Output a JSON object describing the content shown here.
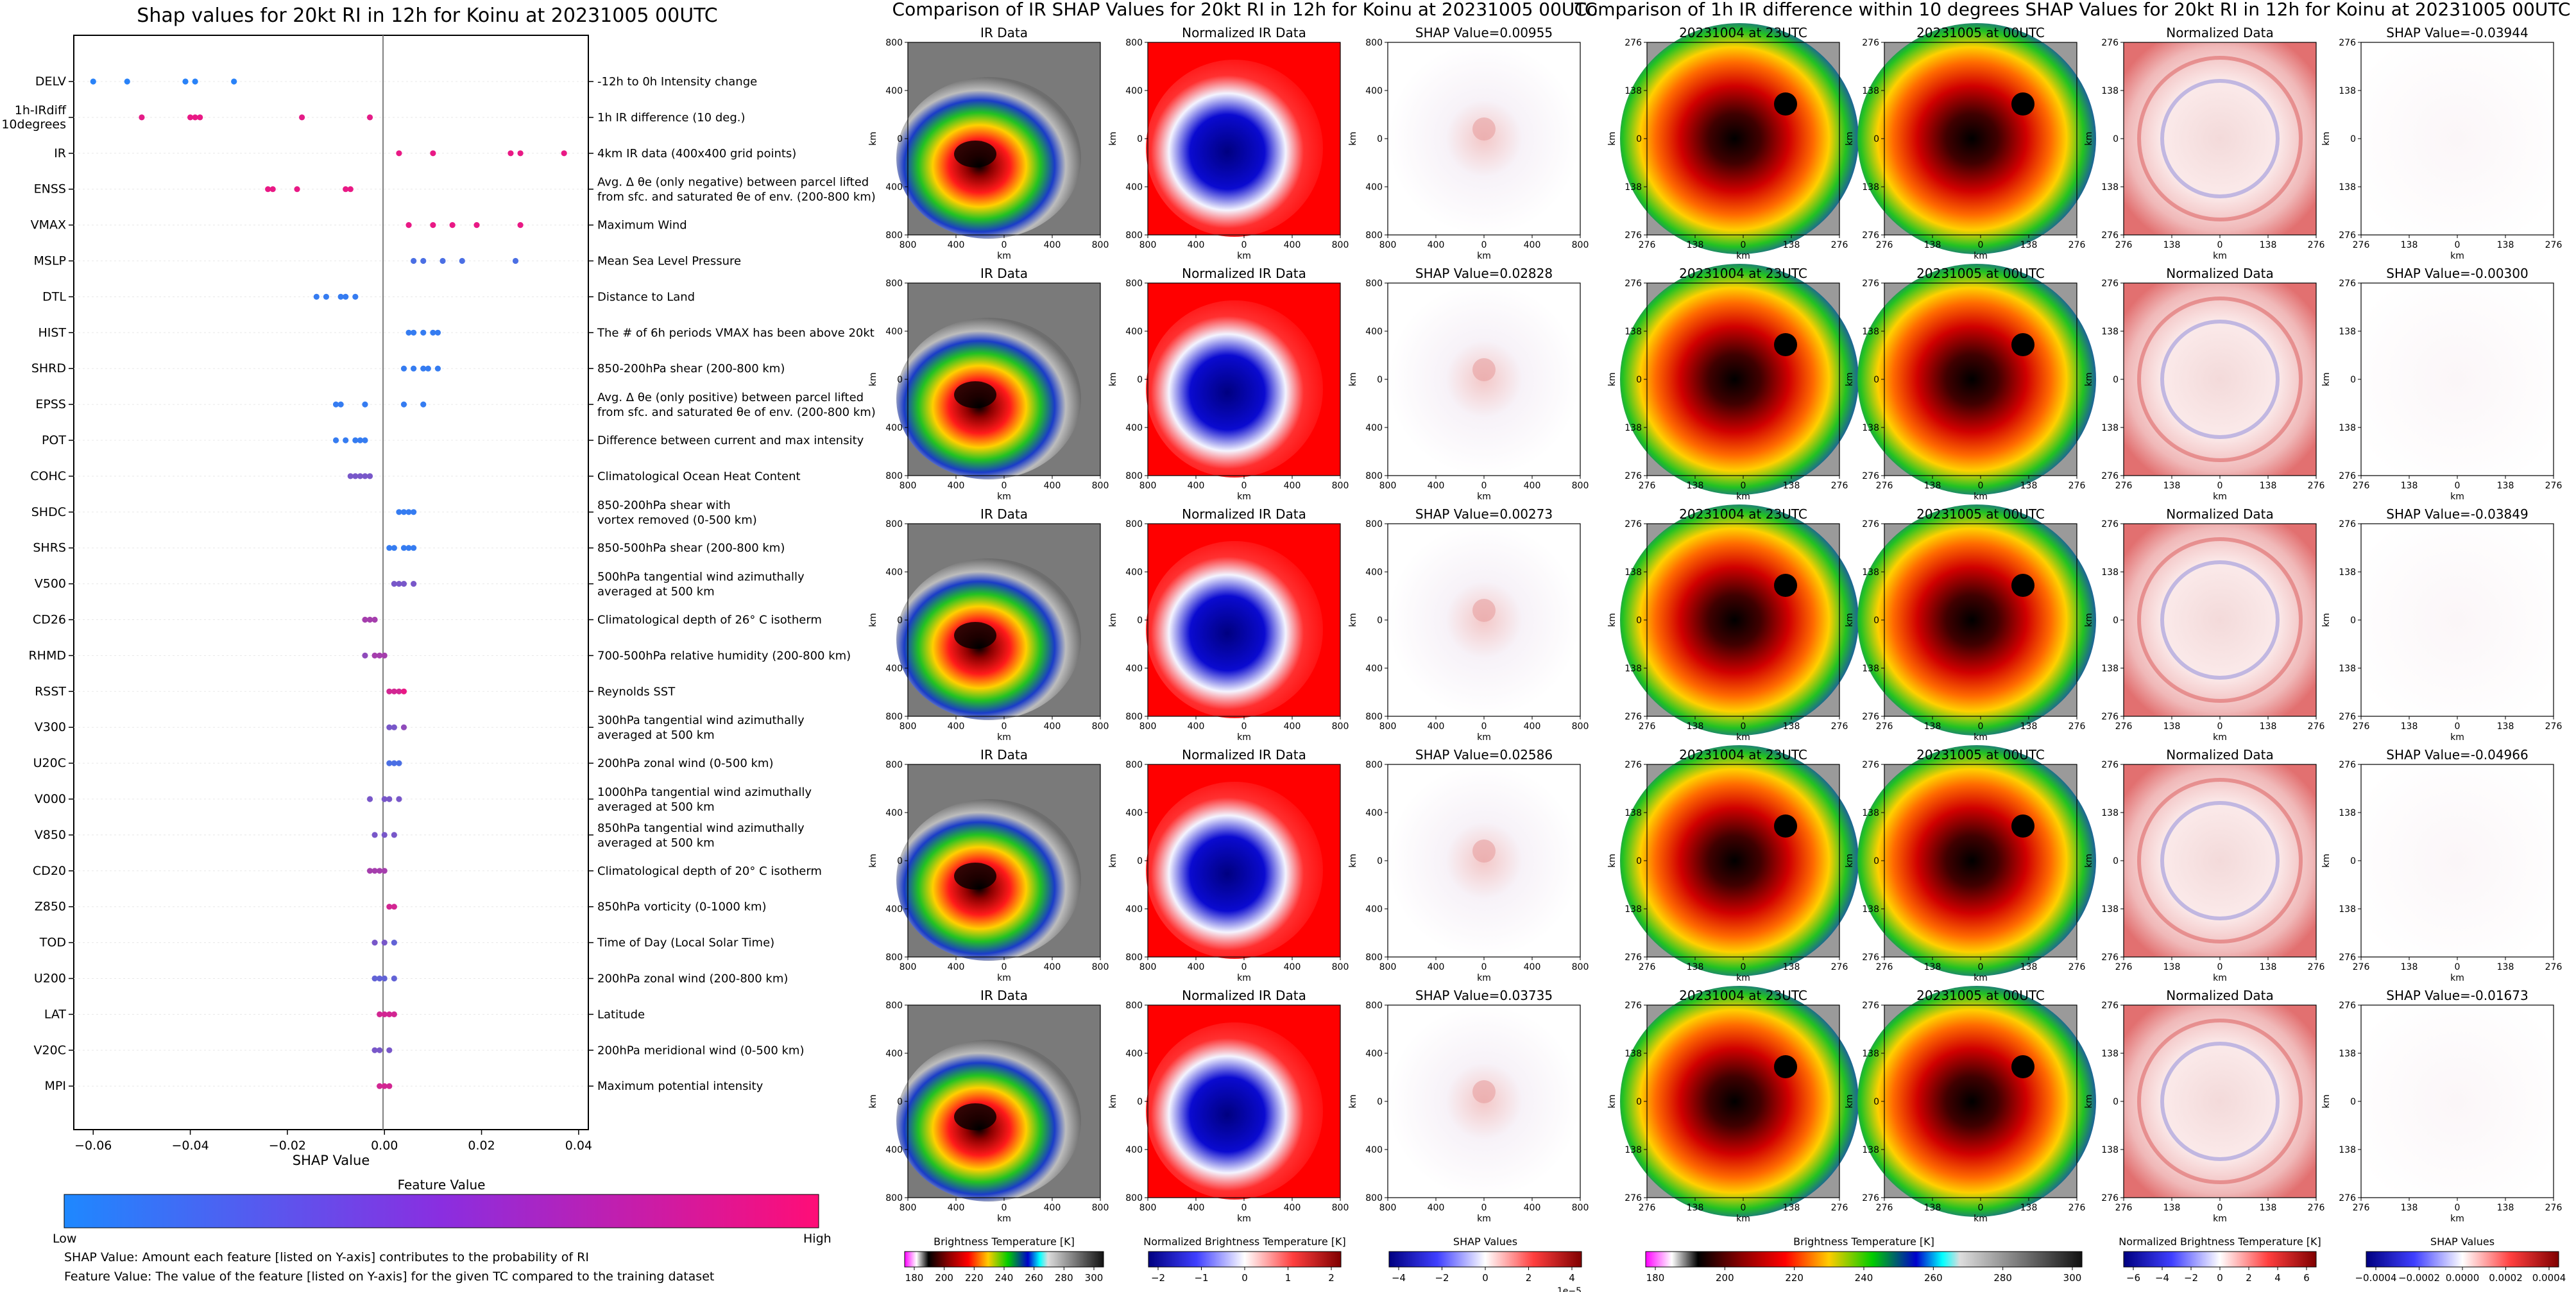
{
  "colors": {
    "low": "#1e88ff",
    "high": "#ff0d77",
    "axis": "#000000",
    "row_line": "#e8e8e8"
  },
  "shap_summary": {
    "title": "Shap values for 20kt RI in 12h for Koinu at 20231005 00UTC",
    "xlabel": "SHAP Value",
    "colorbar_title": "Feature Value",
    "colorbar_low": "Low",
    "colorbar_high": "High",
    "note1": "SHAP Value: Amount each feature [listed on Y-axis] contributes to the probability of RI",
    "note2": "Feature Value: The value of the feature [listed on Y-axis] for the given TC compared to the training dataset"
  },
  "ir_panel": {
    "title": "Comparison of IR SHAP Values for 20kt RI in 12h for Koinu at 20231005 00UTC",
    "columns": [
      "IR Data",
      "Normalized IR Data"
    ],
    "shap_titles": [
      "SHAP Value=0.00955",
      "SHAP Value=0.02828",
      "SHAP Value=0.00273",
      "SHAP Value=0.02586",
      "SHAP Value=0.03735"
    ],
    "y_ticks": [
      "800",
      "400",
      "0",
      "400",
      "800"
    ],
    "x_ticks": [
      "800",
      "400",
      "0",
      "400",
      "800"
    ],
    "axis_label": "km",
    "colorbars": [
      {
        "label": "Brightness Temperature [K]",
        "ticks": [
          "180",
          "200",
          "220",
          "240",
          "260",
          "280",
          "300"
        ]
      },
      {
        "label": "Normalized Brightness Temperature [K]",
        "ticks": [
          "−2",
          "−1",
          "0",
          "1",
          "2"
        ]
      },
      {
        "label": "SHAP Values",
        "ticks": [
          "−4",
          "−2",
          "0",
          "2",
          "4"
        ],
        "offset": "1e−5"
      }
    ]
  },
  "diff_panel": {
    "title": "Comparison of 1h IR difference within 10 degrees SHAP Values for 20kt RI in 12h for Koinu at 20231005 00UTC",
    "columns": [
      "20231004 at 23UTC",
      "20231005 at 00UTC",
      "Normalized Data"
    ],
    "shap_titles": [
      "SHAP Value=-0.03944",
      "SHAP Value=-0.00300",
      "SHAP Value=-0.03849",
      "SHAP Value=-0.04966",
      "SHAP Value=-0.01673"
    ],
    "y_ticks": [
      "276",
      "138",
      "0",
      "138",
      "276"
    ],
    "x_ticks": [
      "276",
      "138",
      "0",
      "138",
      "276"
    ],
    "axis_label": "km",
    "colorbars": [
      {
        "label": "Brightness Temperature [K]",
        "ticks": [
          "180",
          "200",
          "220",
          "240",
          "260",
          "280",
          "300"
        ]
      },
      {
        "label": "Normalized Brightness Temperature [K]",
        "ticks": [
          "−6",
          "−4",
          "−2",
          "0",
          "2",
          "4",
          "6"
        ]
      },
      {
        "label": "SHAP Values",
        "ticks": [
          "−0.0004",
          "−0.0002",
          "0.0000",
          "0.0002",
          "0.0004"
        ]
      }
    ]
  },
  "chart_data": {
    "type": "scatter",
    "title": "Shap values for 20kt RI in 12h for Koinu at 20231005 00UTC",
    "xlabel": "SHAP Value",
    "xlim": [
      -0.064,
      0.042
    ],
    "xticks": [
      -0.06,
      -0.04,
      -0.02,
      0.0,
      0.02,
      0.04
    ],
    "xtick_labels": [
      "−0.06",
      "−0.04",
      "−0.02",
      "0.00",
      "0.02",
      "0.04"
    ],
    "color_scale": "feature value (Low=blue, High=pink)",
    "features": [
      {
        "name": "DELV",
        "desc": "-12h to 0h Intensity change",
        "points": [
          [
            -0.06,
            0.05
          ],
          [
            -0.053,
            0.05
          ],
          [
            -0.041,
            0.05
          ],
          [
            -0.039,
            0.05
          ],
          [
            -0.031,
            0.05
          ]
        ]
      },
      {
        "name": "1h-IRdiff\n10degrees",
        "desc": "1h IR difference (10 deg.)",
        "points": [
          [
            -0.05,
            0.88
          ],
          [
            -0.04,
            0.9
          ],
          [
            -0.039,
            0.9
          ],
          [
            -0.038,
            0.9
          ],
          [
            -0.017,
            0.88
          ],
          [
            -0.003,
            0.88
          ]
        ]
      },
      {
        "name": "IR",
        "desc": "4km IR data (400x400 grid points)",
        "points": [
          [
            0.003,
            0.9
          ],
          [
            0.01,
            0.9
          ],
          [
            0.026,
            0.9
          ],
          [
            0.028,
            0.9
          ],
          [
            0.037,
            0.9
          ]
        ]
      },
      {
        "name": "ENSS",
        "desc": "Avg. Δ θe (only negative) between parcel lifted\nfrom sfc. and saturated θe of env. (200-800 km)",
        "points": [
          [
            -0.024,
            0.9
          ],
          [
            -0.023,
            0.9
          ],
          [
            -0.018,
            0.9
          ],
          [
            -0.008,
            0.9
          ],
          [
            -0.007,
            0.9
          ]
        ]
      },
      {
        "name": "VMAX",
        "desc": "Maximum Wind",
        "points": [
          [
            0.005,
            0.9
          ],
          [
            0.01,
            0.9
          ],
          [
            0.014,
            0.9
          ],
          [
            0.019,
            0.9
          ],
          [
            0.028,
            0.9
          ]
        ]
      },
      {
        "name": "MSLP",
        "desc": "Mean Sea Level Pressure",
        "points": [
          [
            0.006,
            0.2
          ],
          [
            0.008,
            0.2
          ],
          [
            0.012,
            0.2
          ],
          [
            0.016,
            0.2
          ],
          [
            0.027,
            0.2
          ]
        ]
      },
      {
        "name": "DTL",
        "desc": "Distance to Land",
        "points": [
          [
            -0.014,
            0.1
          ],
          [
            -0.012,
            0.1
          ],
          [
            -0.009,
            0.1
          ],
          [
            -0.008,
            0.1
          ],
          [
            -0.006,
            0.1
          ]
        ]
      },
      {
        "name": "HIST",
        "desc": "The # of 6h periods VMAX has been above 20kt",
        "points": [
          [
            0.005,
            0.1
          ],
          [
            0.006,
            0.1
          ],
          [
            0.008,
            0.1
          ],
          [
            0.01,
            0.1
          ],
          [
            0.011,
            0.1
          ]
        ]
      },
      {
        "name": "SHRD",
        "desc": "850-200hPa shear (200-800 km)",
        "points": [
          [
            0.004,
            0.1
          ],
          [
            0.006,
            0.1
          ],
          [
            0.008,
            0.1
          ],
          [
            0.009,
            0.1
          ],
          [
            0.011,
            0.1
          ]
        ]
      },
      {
        "name": "EPSS",
        "desc": "Avg. Δ θe (only positive) between parcel lifted\nfrom sfc. and saturated θe of env. (200-800 km)",
        "points": [
          [
            -0.01,
            0.1
          ],
          [
            -0.009,
            0.1
          ],
          [
            -0.004,
            0.1
          ],
          [
            0.004,
            0.1
          ],
          [
            0.008,
            0.1
          ]
        ]
      },
      {
        "name": "POT",
        "desc": "Difference between current and max intensity",
        "points": [
          [
            -0.01,
            0.1
          ],
          [
            -0.008,
            0.1
          ],
          [
            -0.006,
            0.1
          ],
          [
            -0.005,
            0.1
          ],
          [
            -0.004,
            0.1
          ]
        ]
      },
      {
        "name": "COHC",
        "desc": "Climatological Ocean Heat Content",
        "points": [
          [
            -0.007,
            0.4
          ],
          [
            -0.006,
            0.4
          ],
          [
            -0.005,
            0.4
          ],
          [
            -0.004,
            0.4
          ],
          [
            -0.003,
            0.4
          ]
        ]
      },
      {
        "name": "SHDC",
        "desc": "850-200hPa shear with\nvortex removed (0-500 km)",
        "points": [
          [
            0.003,
            0.1
          ],
          [
            0.004,
            0.1
          ],
          [
            0.005,
            0.1
          ],
          [
            0.006,
            0.1
          ]
        ]
      },
      {
        "name": "SHRS",
        "desc": "850-500hPa shear (200-800 km)",
        "points": [
          [
            0.001,
            0.1
          ],
          [
            0.002,
            0.1
          ],
          [
            0.004,
            0.1
          ],
          [
            0.005,
            0.1
          ],
          [
            0.006,
            0.1
          ]
        ]
      },
      {
        "name": "V500",
        "desc": "500hPa tangential wind azimuthally\naveraged at 500 km",
        "points": [
          [
            0.002,
            0.4
          ],
          [
            0.003,
            0.4
          ],
          [
            0.004,
            0.4
          ],
          [
            0.006,
            0.4
          ]
        ]
      },
      {
        "name": "CD26",
        "desc": "Climatological depth of 26° C isotherm",
        "points": [
          [
            -0.004,
            0.6
          ],
          [
            -0.003,
            0.6
          ],
          [
            -0.002,
            0.6
          ]
        ]
      },
      {
        "name": "RHMD",
        "desc": "700-500hPa relative humidity (200-800 km)",
        "points": [
          [
            -0.004,
            0.5
          ],
          [
            -0.002,
            0.6
          ],
          [
            -0.001,
            0.6
          ],
          [
            0.0,
            0.6
          ]
        ]
      },
      {
        "name": "RSST",
        "desc": "Reynolds SST",
        "points": [
          [
            0.001,
            0.8
          ],
          [
            0.002,
            0.8
          ],
          [
            0.003,
            0.8
          ],
          [
            0.004,
            0.9
          ]
        ]
      },
      {
        "name": "V300",
        "desc": "300hPa tangential wind azimuthally\naveraged at 500 km",
        "points": [
          [
            0.001,
            0.4
          ],
          [
            0.002,
            0.4
          ],
          [
            0.004,
            0.5
          ]
        ]
      },
      {
        "name": "U20C",
        "desc": "200hPa zonal wind (0-500 km)",
        "points": [
          [
            0.001,
            0.2
          ],
          [
            0.002,
            0.2
          ],
          [
            0.003,
            0.2
          ]
        ]
      },
      {
        "name": "V000",
        "desc": "1000hPa tangential wind azimuthally\naveraged at 500 km",
        "points": [
          [
            -0.003,
            0.4
          ],
          [
            0.0,
            0.4
          ],
          [
            0.001,
            0.4
          ],
          [
            0.003,
            0.4
          ]
        ]
      },
      {
        "name": "V850",
        "desc": "850hPa tangential wind azimuthally\naveraged at 500 km",
        "points": [
          [
            -0.002,
            0.4
          ],
          [
            0.0,
            0.4
          ],
          [
            0.002,
            0.4
          ]
        ]
      },
      {
        "name": "CD20",
        "desc": "Climatological depth of 20° C isotherm",
        "points": [
          [
            -0.003,
            0.6
          ],
          [
            -0.002,
            0.6
          ],
          [
            -0.001,
            0.6
          ],
          [
            0.0,
            0.6
          ]
        ]
      },
      {
        "name": "Z850",
        "desc": "850hPa vorticity (0-1000 km)",
        "points": [
          [
            0.001,
            0.8
          ],
          [
            0.002,
            0.8
          ]
        ]
      },
      {
        "name": "TOD",
        "desc": "Time of Day (Local Solar Time)",
        "points": [
          [
            -0.002,
            0.4
          ],
          [
            0.0,
            0.4
          ],
          [
            0.002,
            0.3
          ]
        ]
      },
      {
        "name": "U200",
        "desc": "200hPa zonal wind (200-800 km)",
        "points": [
          [
            -0.002,
            0.3
          ],
          [
            -0.001,
            0.3
          ],
          [
            0.0,
            0.3
          ],
          [
            0.002,
            0.3
          ]
        ]
      },
      {
        "name": "LAT",
        "desc": "Latitude",
        "points": [
          [
            -0.001,
            0.8
          ],
          [
            0.0,
            0.8
          ],
          [
            0.001,
            0.8
          ],
          [
            0.002,
            0.8
          ]
        ]
      },
      {
        "name": "V20C",
        "desc": "200hPa meridional wind (0-500 km)",
        "points": [
          [
            -0.002,
            0.4
          ],
          [
            -0.001,
            0.4
          ],
          [
            0.001,
            0.4
          ]
        ]
      },
      {
        "name": "MPI",
        "desc": "Maximum potential intensity",
        "points": [
          [
            -0.001,
            0.8
          ],
          [
            0.0,
            0.8
          ],
          [
            0.001,
            0.8
          ]
        ]
      }
    ]
  }
}
